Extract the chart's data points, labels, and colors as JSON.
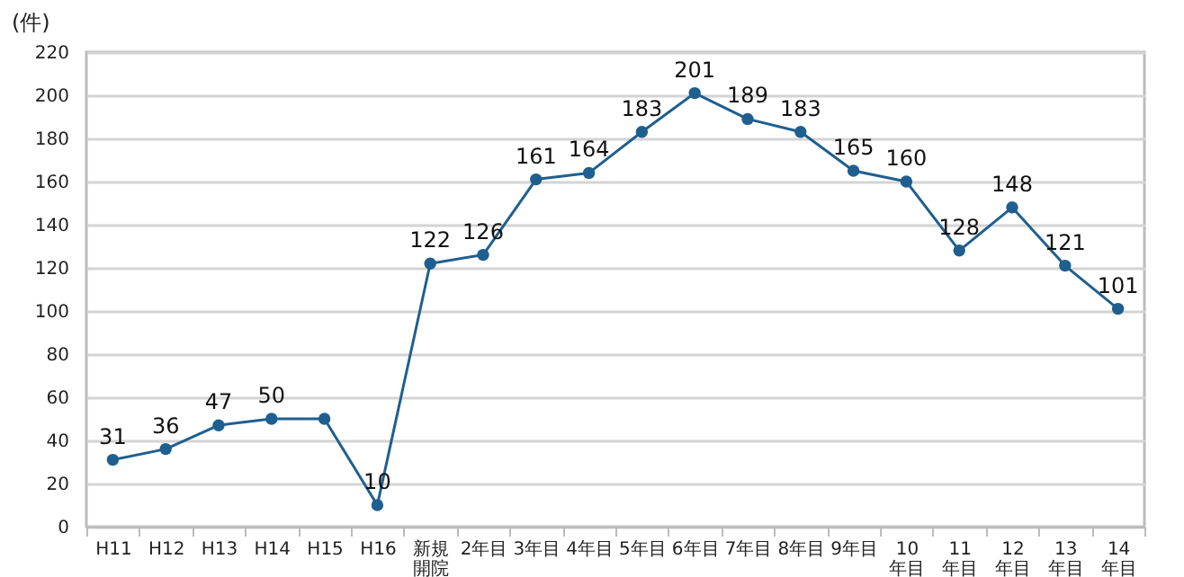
{
  "chart_data": {
    "type": "line",
    "ylabel": "(件)",
    "categories": [
      "H11",
      "H12",
      "H13",
      "H14",
      "H15",
      "H16",
      "新規開院",
      "2年目",
      "3年目",
      "4年目",
      "5年目",
      "6年目",
      "7年目",
      "8年目",
      "9年目",
      "10年目",
      "11年目",
      "12年目",
      "13年目",
      "14年目"
    ],
    "series": [
      {
        "color": "#1f5f8f",
        "values": [
          31,
          36,
          47,
          50,
          50,
          10,
          122,
          126,
          161,
          164,
          183,
          201,
          189,
          183,
          165,
          160,
          128,
          148,
          121,
          101
        ],
        "value_labels": [
          "31",
          "36",
          "47",
          "50",
          null,
          "10",
          "122",
          "126",
          "161",
          "164",
          "183",
          "201",
          "189",
          "183",
          "165",
          "160",
          "128",
          "148",
          "121",
          "101"
        ]
      }
    ],
    "ylim": [
      0,
      220
    ],
    "yticks": [
      0,
      20,
      40,
      60,
      80,
      100,
      120,
      140,
      160,
      180,
      200,
      220
    ],
    "grid": "y",
    "marker": "circle",
    "line_style": "solid"
  }
}
